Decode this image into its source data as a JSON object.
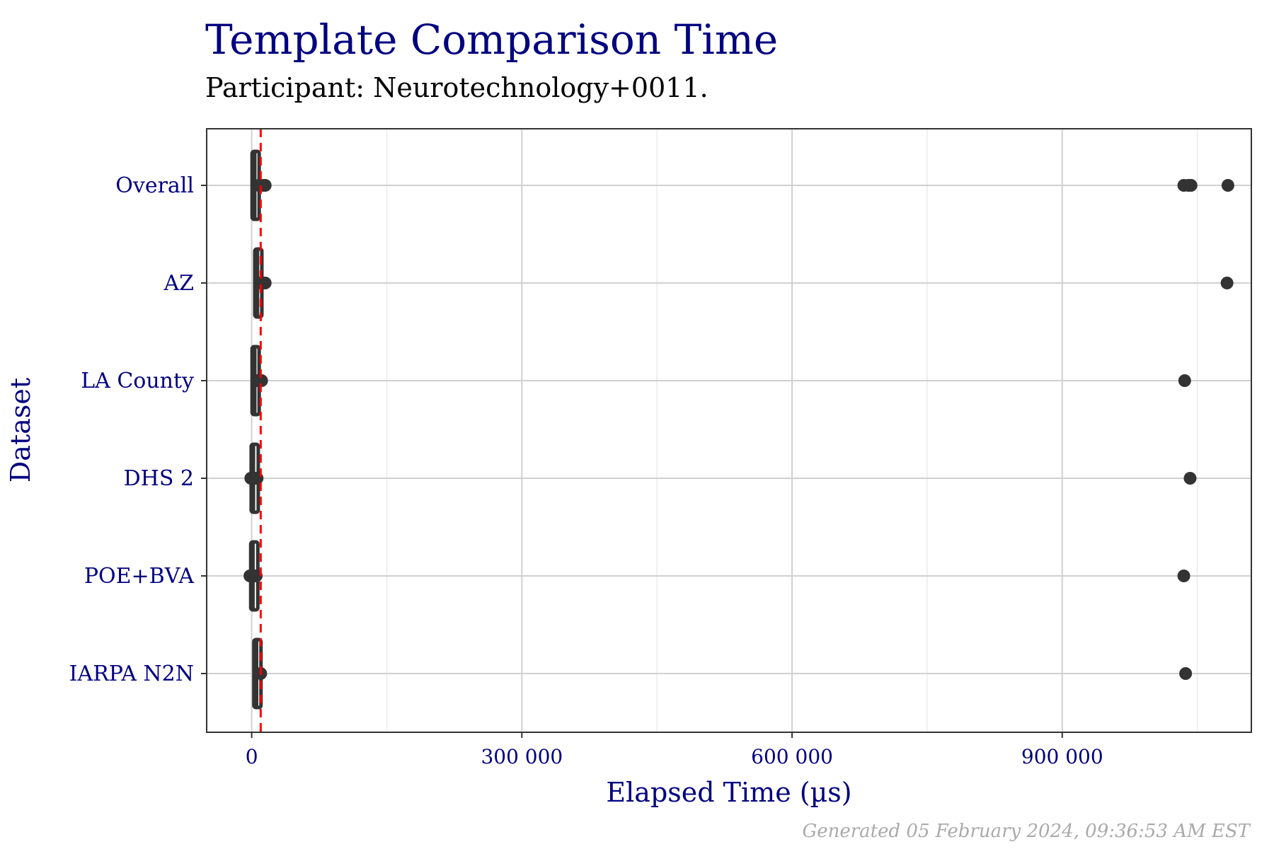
{
  "title": "Template Comparison Time",
  "subtitle": "Participant: Neurotechnology+0011.",
  "caption": "Generated 05 February 2024, 09:36:53 AM EST",
  "colors": {
    "title": "#000080",
    "reference_line": "#ff0000",
    "marks": "#333333",
    "grid": "#d0d0d0"
  },
  "chart_data": {
    "type": "boxplot",
    "orientation": "horizontal",
    "xlabel": "Elapsed Time (µs)",
    "ylabel": "Dataset",
    "xlim": [
      -50000,
      1110000
    ],
    "x_ticks": [
      0,
      300000,
      600000,
      900000
    ],
    "x_tick_labels": [
      "0",
      "300 000",
      "600 000",
      "900 000"
    ],
    "reference_line_x": 10000,
    "grid": true,
    "categories": [
      "Overall",
      "AZ",
      "LA County",
      "DHS 2",
      "POE+BVA",
      "IARPA N2N"
    ],
    "series": [
      {
        "category": "Overall",
        "q1": 2000,
        "median": 3000,
        "q3": 4000,
        "whisker_low": 1000,
        "whisker_high": 6000,
        "outliers": [
          8000,
          10000,
          13000,
          15000,
          1035000,
          1040000,
          1043000,
          1084000
        ]
      },
      {
        "category": "AZ",
        "q1": 5000,
        "median": 6000,
        "q3": 7000,
        "whisker_low": 4000,
        "whisker_high": 8000,
        "outliers": [
          10000,
          12000,
          15000,
          1083000
        ]
      },
      {
        "category": "LA County",
        "q1": 2000,
        "median": 3000,
        "q3": 4000,
        "whisker_low": 500,
        "whisker_high": 5000,
        "outliers": [
          6000,
          8000,
          11000,
          1036000
        ]
      },
      {
        "category": "DHS 2",
        "q1": 1000,
        "median": 1500,
        "q3": 2000,
        "whisker_low": 200,
        "whisker_high": 3000,
        "outliers": [
          -1000,
          4000,
          6000,
          1042000
        ]
      },
      {
        "category": "POE+BVA",
        "q1": 500,
        "median": 1000,
        "q3": 1500,
        "whisker_low": 100,
        "whisker_high": 2500,
        "outliers": [
          -2000,
          4000,
          5000,
          1035000
        ]
      },
      {
        "category": "IARPA N2N",
        "q1": 4000,
        "median": 5000,
        "q3": 6000,
        "whisker_low": 3000,
        "whisker_high": 7000,
        "outliers": [
          10000,
          1037000
        ]
      }
    ]
  }
}
